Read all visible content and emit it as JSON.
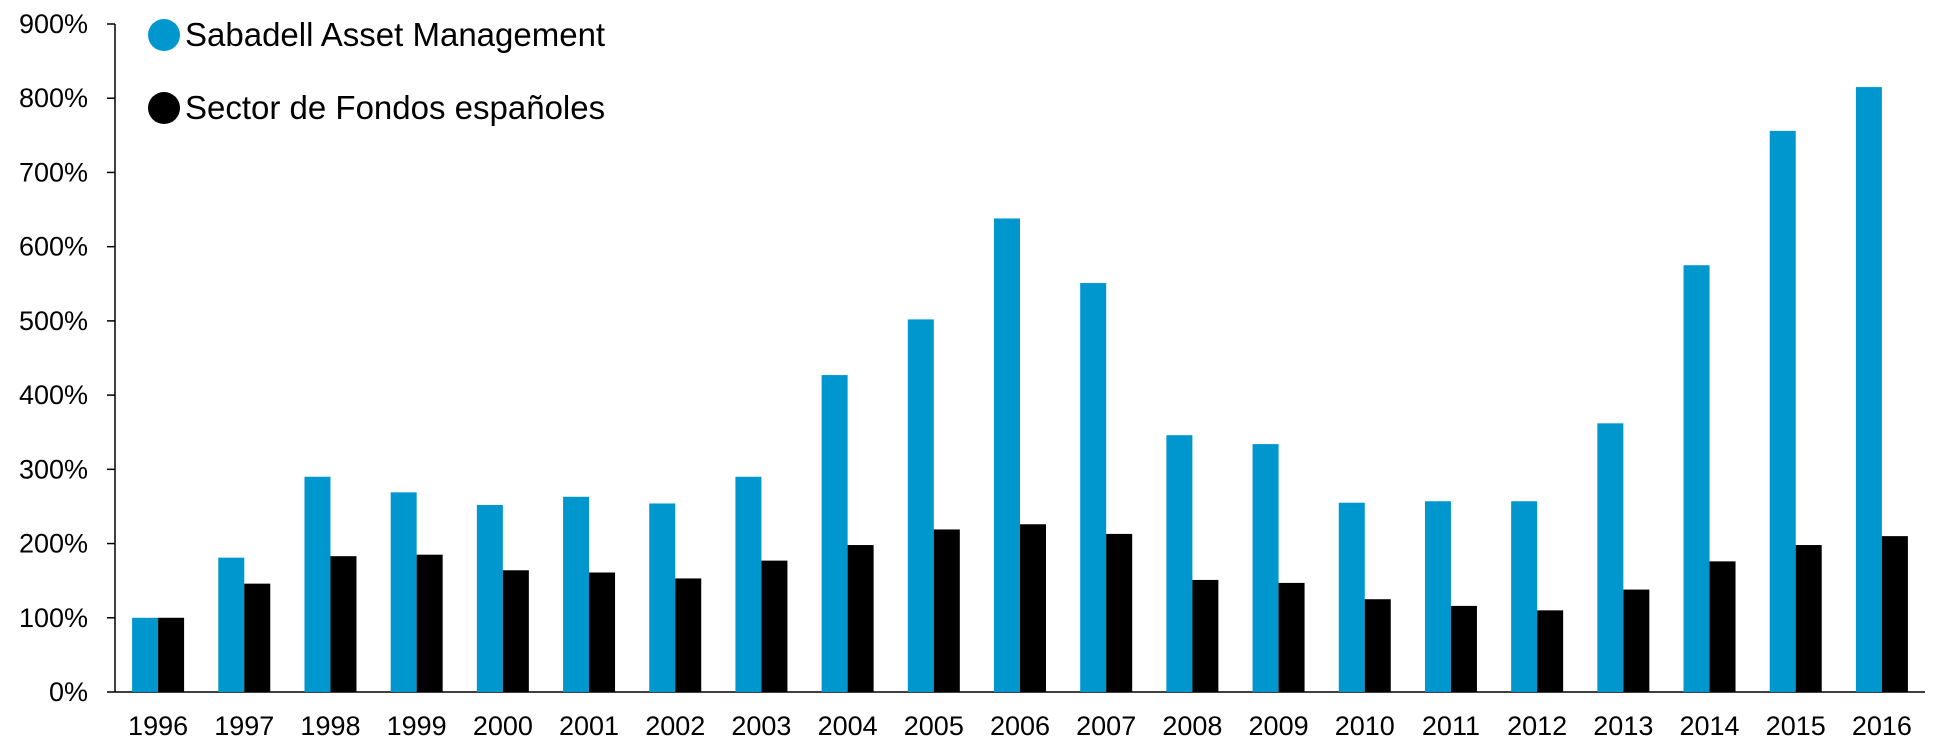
{
  "chart_data": {
    "type": "bar",
    "title": "",
    "xlabel": "",
    "ylabel": "",
    "categories": [
      "1996",
      "1997",
      "1998",
      "1999",
      "2000",
      "2001",
      "2002",
      "2003",
      "2004",
      "2005",
      "2006",
      "2007",
      "2008",
      "2009",
      "2010",
      "2011",
      "2012",
      "2013",
      "2014",
      "2015",
      "2016"
    ],
    "series": [
      {
        "name": "Sabadell Asset Management",
        "color": "#0097CE",
        "values": [
          100,
          181,
          290,
          269,
          252,
          263,
          254,
          290,
          427,
          502,
          638,
          551,
          346,
          334,
          255,
          257,
          257,
          362,
          575,
          756,
          815
        ]
      },
      {
        "name": "Sector de Fondos españoles",
        "color": "#000000",
        "values": [
          100,
          146,
          183,
          185,
          164,
          161,
          153,
          177,
          198,
          219,
          226,
          213,
          151,
          147,
          125,
          116,
          110,
          138,
          176,
          198,
          210
        ]
      }
    ],
    "ylim": [
      0,
      900
    ],
    "y_ticks": [
      "0%",
      "100%",
      "200%",
      "300%",
      "400%",
      "500%",
      "600%",
      "700%",
      "800%",
      "900%"
    ],
    "grid": false,
    "legend_position": "top-left"
  }
}
